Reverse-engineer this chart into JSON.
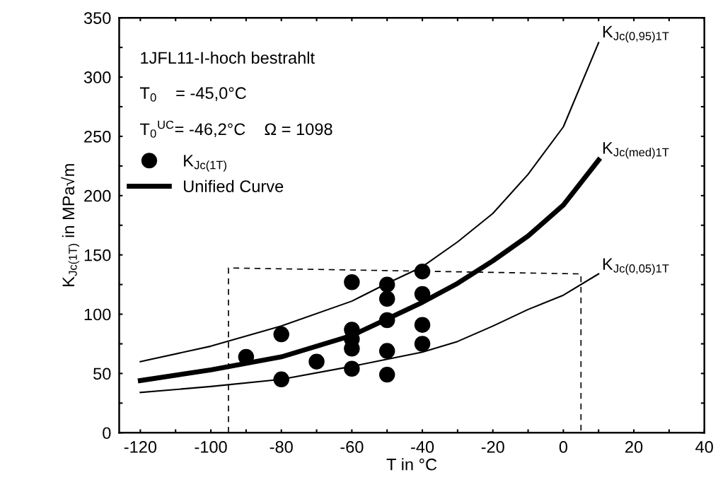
{
  "chart_data": {
    "type": "line",
    "xlabel": "T in °C",
    "ylabel": "K$_{Jc(1T)}$ in MPa√m",
    "xlim": [
      -126,
      40
    ],
    "ylim": [
      0,
      350
    ],
    "xticks": [
      -120,
      {
        "value": -110,
        "label": null
      },
      -100,
      {
        "value": -90,
        "label": null
      },
      -80,
      {
        "value": -70,
        "label": null
      },
      -60,
      {
        "value": -50,
        "label": null
      },
      -40,
      {
        "value": -30,
        "label": null
      },
      -20,
      {
        "value": -10,
        "label": null
      },
      0,
      {
        "value": 10,
        "label": null
      },
      20,
      {
        "value": 30,
        "label": null
      },
      40
    ],
    "yticks": [
      0,
      {
        "value": 25,
        "label": null
      },
      50,
      {
        "value": 75,
        "label": null
      },
      100,
      {
        "value": 125,
        "label": null
      },
      150,
      {
        "value": 175,
        "label": null
      },
      200,
      {
        "value": 225,
        "label": null
      },
      250,
      {
        "value": 275,
        "label": null
      },
      300,
      {
        "value": 325,
        "label": null
      },
      350
    ],
    "grid": false,
    "legend": "top left",
    "series": [
      {
        "type": "scatter",
        "name": "K$_{Jc(1T)}$",
        "color": "#000000",
        "marker": "circle",
        "x": [
          -90,
          -80,
          -80,
          -70,
          -60,
          -60,
          -60,
          -60,
          -60,
          -50,
          -50,
          -50,
          -50,
          -50,
          -40,
          -40,
          -40,
          -40
        ],
        "values": [
          64,
          83,
          45,
          60,
          127,
          87,
          79,
          71,
          54,
          125,
          113,
          95,
          69,
          49,
          136,
          117,
          91,
          75
        ]
      },
      {
        "color": "#000000",
        "x": [
          -120,
          -100,
          -80,
          -60,
          -50,
          -40,
          -30,
          -20,
          -10,
          0,
          10
        ],
        "values": [
          60,
          73,
          90,
          111,
          126,
          140,
          161,
          185,
          218,
          258,
          329
        ]
      },
      {
        "name": "Unified Curve",
        "color": "#000000",
        "x": [
          -120,
          -100,
          -80,
          -60,
          -50,
          -40,
          -30,
          -20,
          -10,
          0,
          10
        ],
        "values": [
          44,
          53,
          64,
          82,
          96,
          110,
          126,
          145,
          166,
          192,
          230
        ]
      },
      {
        "color": "#000000",
        "x": [
          -120,
          -100,
          -80,
          -60,
          -40,
          -30,
          -20,
          -10,
          0,
          10
        ],
        "values": [
          34,
          39,
          45,
          56,
          68,
          77,
          90,
          104,
          116,
          134
        ]
      },
      {
        "color": "#000000",
        "line_style": "dashed",
        "x": [
          -95,
          -95,
          5,
          5
        ],
        "values": [
          0,
          139,
          134,
          0
        ]
      }
    ],
    "annotations": [
      "1JFL11-I-hoch bestrahlt",
      "T$_{0}$    = -45,0°C",
      "T$_{0}$$^{UC}$= -46,2°C    Ω = 1098",
      "K$_{Jc(0,95)1T}$",
      "K$_{Jc(med)1T}$",
      "K$_{Jc(0,05)1T}$"
    ]
  }
}
